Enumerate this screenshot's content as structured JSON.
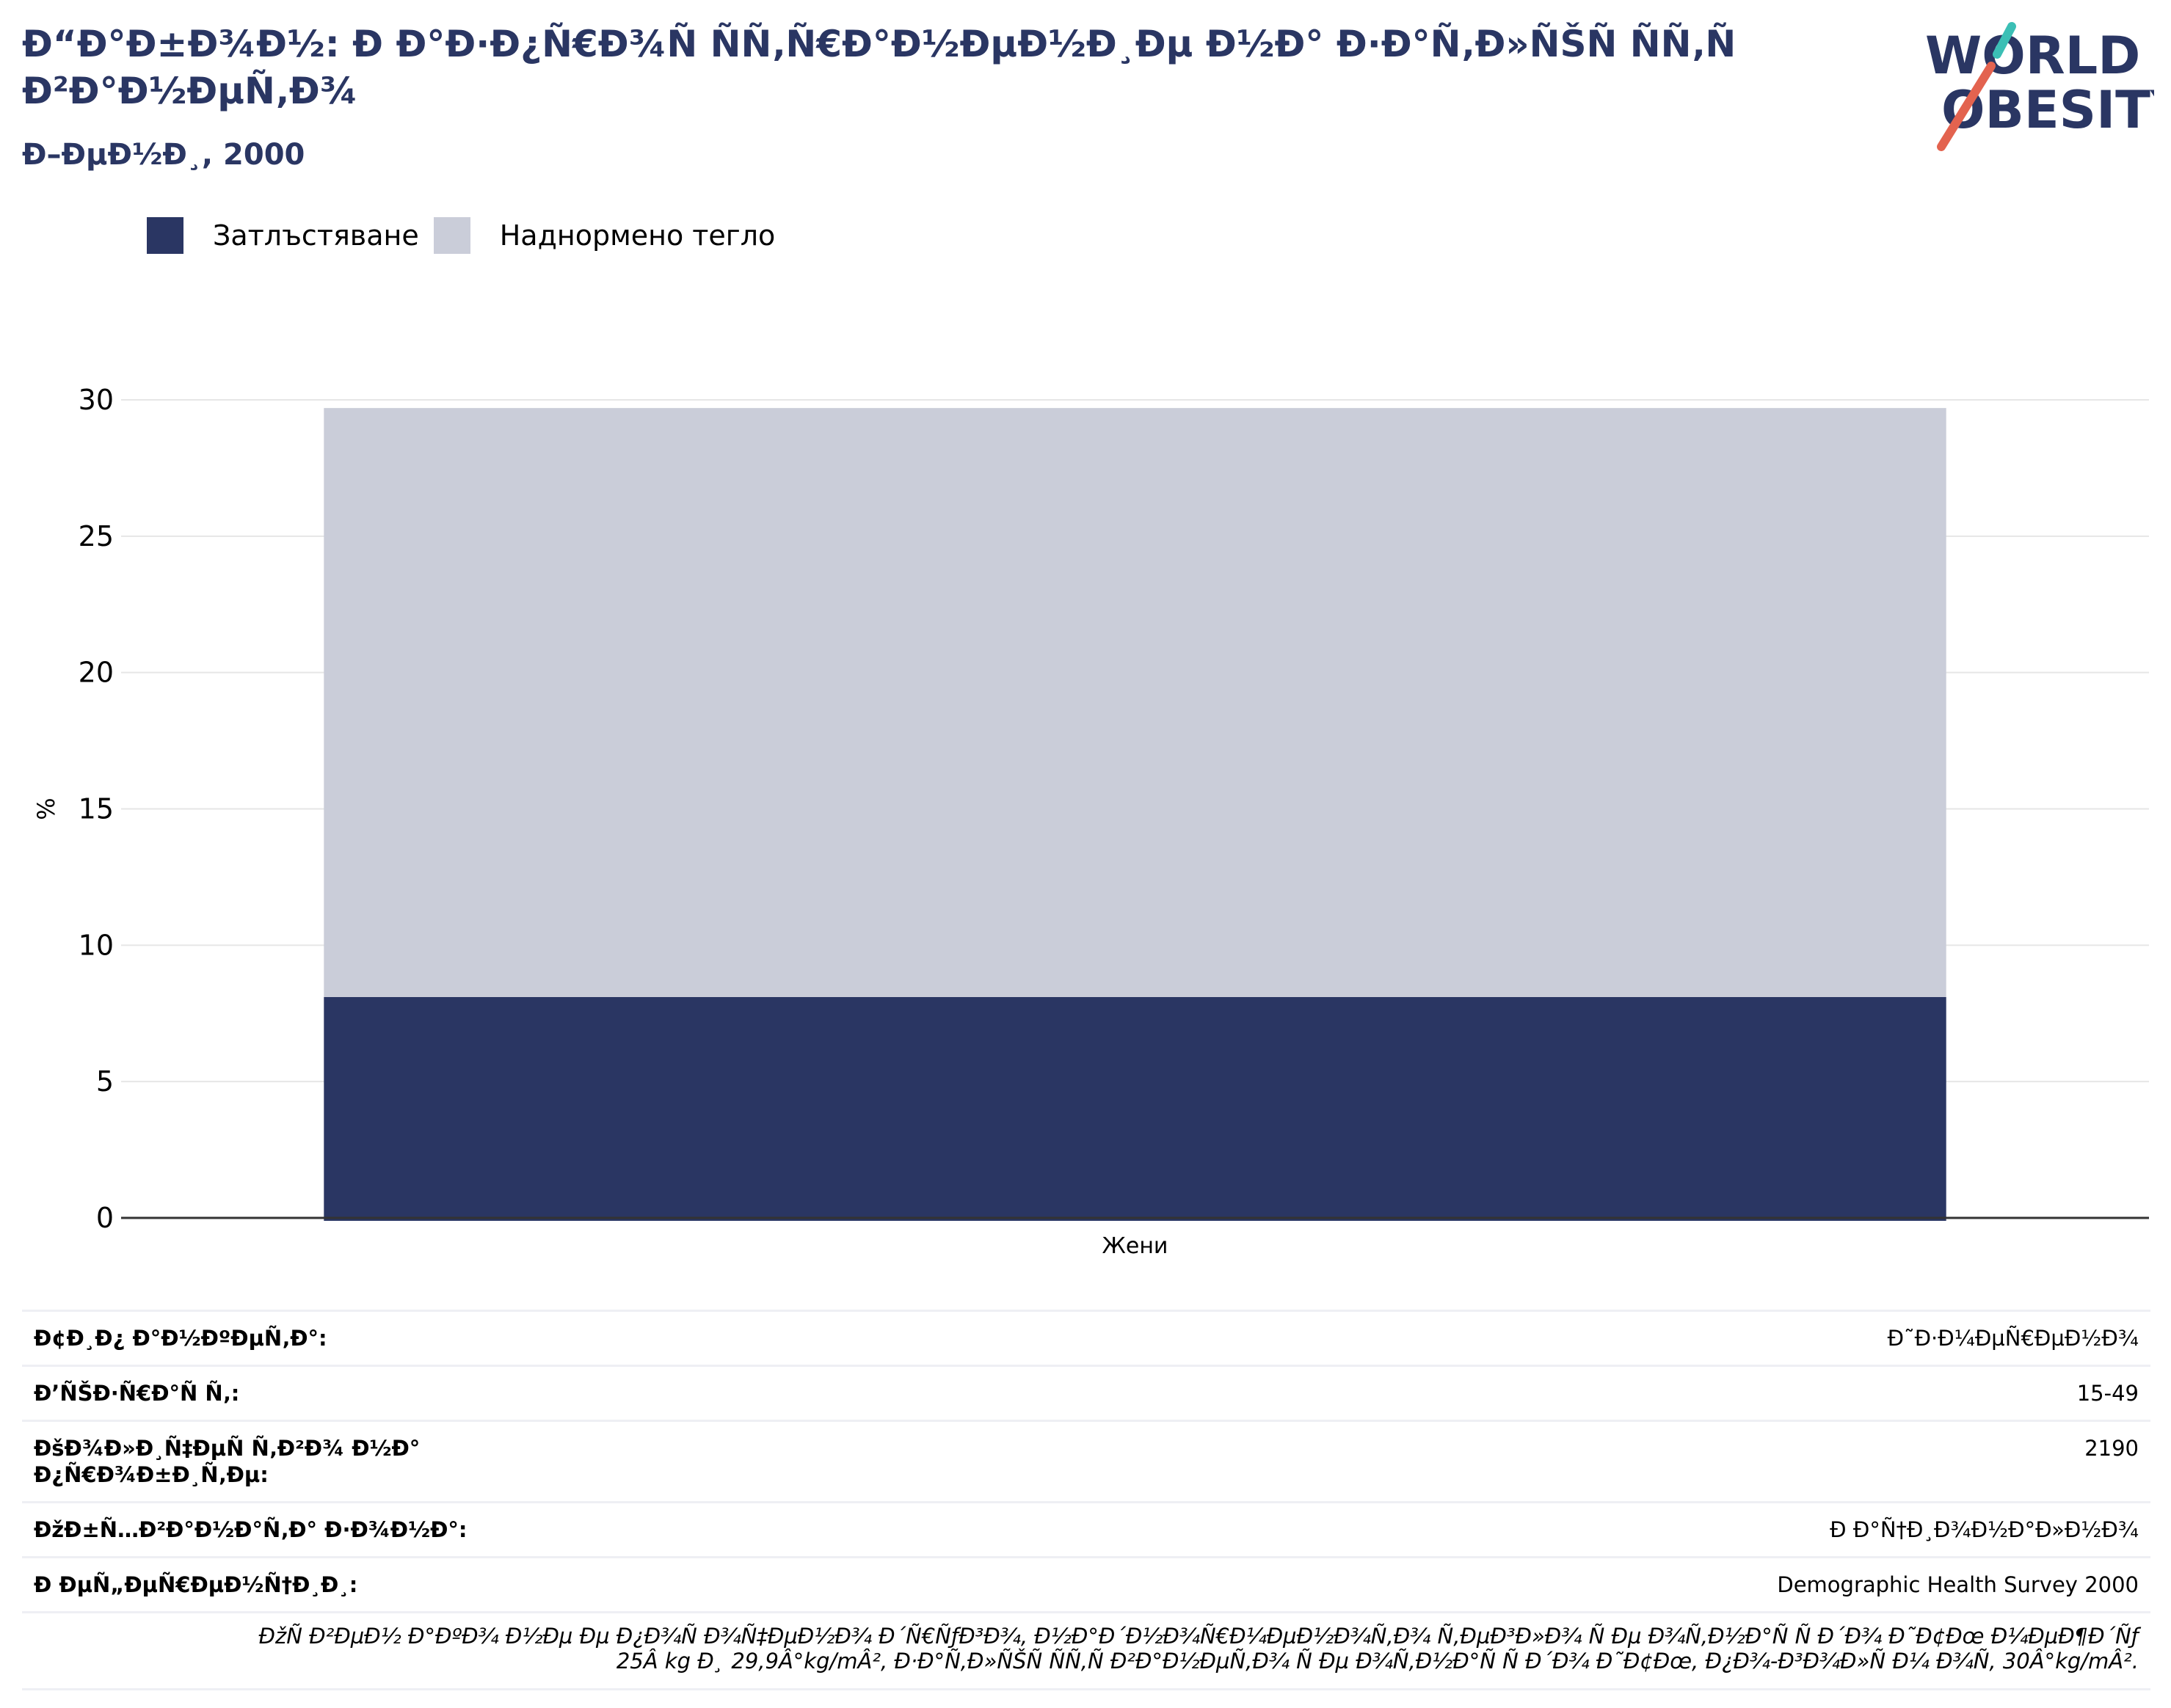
{
  "header": {
    "title": "Ð“Ð°Ð±Ð¾Ð½: Ð Ð°Ð·Ð¿Ñ€Ð¾Ñ ÑÑ‚Ñ€Ð°Ð½ÐµÐ½Ð¸Ðµ Ð½Ð° Ð·Ð°Ñ‚Ð»ÑŠÑ ÑÑ‚Ñ Ð²Ð°Ð½ÐµÑ‚Ð¾",
    "subtitle": "Ð–ÐµÐ½Ð¸, 2000"
  },
  "logo": {
    "line1": "WORLD",
    "line2": "OBESITY"
  },
  "legend": [
    {
      "label": "Затлъстяване",
      "color": "#2a3663"
    },
    {
      "label": "Наднормено тегло",
      "color": "#cacdd9"
    }
  ],
  "chart_data": {
    "type": "bar",
    "stacked": true,
    "categories": [
      "Жени"
    ],
    "series": [
      {
        "name": "Затлъстяване",
        "values": [
          8.1
        ],
        "color": "#2a3663"
      },
      {
        "name": "Наднормено тегло",
        "values": [
          21.6
        ],
        "color": "#cacdd9"
      }
    ],
    "ylabel": "%",
    "ylim": [
      0,
      30
    ],
    "yticks": [
      0,
      5,
      10,
      15,
      20,
      25,
      30
    ],
    "grid": true
  },
  "info": {
    "rows": [
      {
        "label": "Ð¢Ð¸Ð¿ Ð°Ð½ÐºÐµÑ‚Ð°:",
        "value": "Ð˜Ð·Ð¼ÐµÑ€ÐµÐ½Ð¾"
      },
      {
        "label": "Ð’ÑŠÐ·Ñ€Ð°Ñ Ñ‚:",
        "value": "15-49"
      },
      {
        "label": "ÐšÐ¾Ð»Ð¸Ñ‡ÐµÑ Ñ‚Ð²Ð¾ Ð½Ð° Ð¿Ñ€Ð¾Ð±Ð¸Ñ‚Ðµ:",
        "value": "2190"
      },
      {
        "label": "ÐžÐ±Ñ…Ð²Ð°Ð½Ð°Ñ‚Ð° Ð·Ð¾Ð½Ð°:",
        "value": "Ð Ð°Ñ†Ð¸Ð¾Ð½Ð°Ð»Ð½Ð¾"
      },
      {
        "label": "Ð ÐµÑ„ÐµÑ€ÐµÐ½Ñ†Ð¸Ð¸:",
        "value": "Demographic Health Survey 2000"
      }
    ],
    "note_line1": "ÐžÑ Ð²ÐµÐ½ Ð°ÐºÐ¾ Ð½Ðµ Ðµ Ð¿Ð¾Ñ Ð¾Ñ‡ÐµÐ½Ð¾ Ð´Ñ€ÑƒÐ³Ð¾, Ð½Ð°Ð´Ð½Ð¾Ñ€Ð¼ÐµÐ½Ð¾Ñ‚Ð¾ Ñ‚ÐµÐ³Ð»Ð¾ Ñ Ðµ Ð¾Ñ‚Ð½Ð°Ñ Ñ Ð´Ð¾ Ð˜Ð¢Ðœ Ð¼ÐµÐ¶Ð´Ñƒ",
    "note_line2": "25Â kg Ð¸ 29,9Â°kg/mÂ², Ð·Ð°Ñ‚Ð»ÑŠÑ ÑÑ‚Ñ Ð²Ð°Ð½ÐµÑ‚Ð¾ Ñ Ðµ Ð¾Ñ‚Ð½Ð°Ñ Ñ Ð´Ð¾ Ð˜Ð¢Ðœ, Ð¿Ð¾-Ð³Ð¾Ð»Ñ Ð¼ Ð¾Ñ‚ 30Â°kg/mÂ²."
  }
}
